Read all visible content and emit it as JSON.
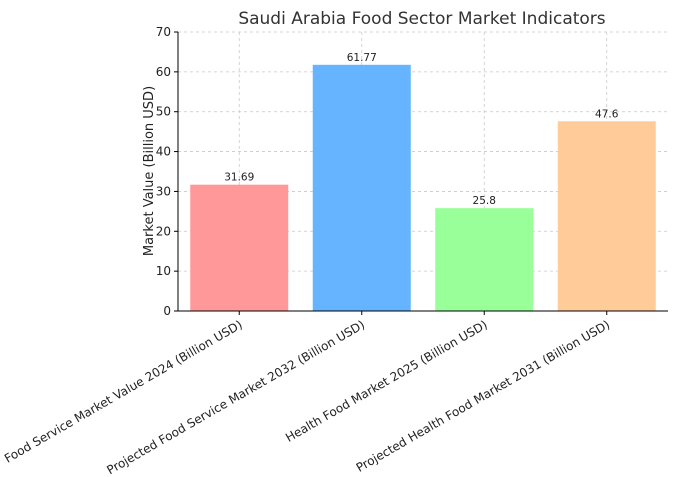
{
  "chart_data": {
    "type": "bar",
    "title": "Saudi Arabia Food Sector Market Indicators",
    "xlabel": "",
    "ylabel": "Market Value (Billion USD)",
    "categories": [
      "Food Service Market Value 2024 (Billion USD)",
      "Projected Food Service Market 2032 (Billion USD)",
      "Health Food Market 2025 (Billion USD)",
      "Projected Health Food Market 2031 (Billion USD)"
    ],
    "values": [
      31.69,
      61.77,
      25.8,
      47.6
    ],
    "value_labels": [
      "31.69",
      "61.77",
      "25.8",
      "47.6"
    ],
    "colors": [
      "#ff9999",
      "#66b3ff",
      "#99ff99",
      "#ffcc99"
    ],
    "ylim": [
      0,
      70
    ],
    "yticks": [
      0,
      10,
      20,
      30,
      40,
      50,
      60,
      70
    ],
    "grid": true
  }
}
